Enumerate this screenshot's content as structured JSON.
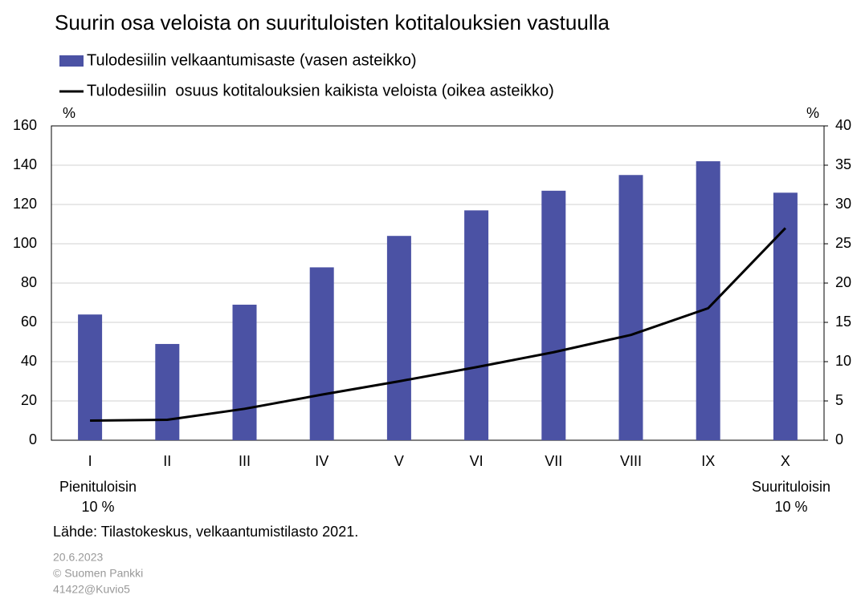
{
  "chart_data": {
    "type": "bar",
    "title": "Suurin osa veloista on suurituloisten kotitalouksien vastuulla",
    "categories": [
      "I",
      "II",
      "III",
      "IV",
      "V",
      "VI",
      "VII",
      "VIII",
      "IX",
      "X"
    ],
    "series": [
      {
        "name": "Tulodesiilin velkaantumisaste (vasen asteikko)",
        "type": "bar",
        "color": "#4b52a4",
        "axis": "y",
        "values": [
          64,
          49,
          69,
          88,
          104,
          117,
          127,
          135,
          142,
          126
        ]
      },
      {
        "name": "Tulodesiilin  osuus kotitalouksien kaikista veloista (oikea asteikko)",
        "type": "line",
        "color": "#000000",
        "axis": "y2",
        "values": [
          2.5,
          2.6,
          4.0,
          5.8,
          7.5,
          9.3,
          11.2,
          13.4,
          16.8,
          27
        ]
      }
    ],
    "ylim": [
      0,
      160
    ],
    "yticks": [
      0,
      20,
      40,
      60,
      80,
      100,
      120,
      140,
      160
    ],
    "y2lim": [
      0,
      40
    ],
    "y2ticks": [
      0,
      5,
      10,
      15,
      20,
      25,
      30,
      35,
      40
    ],
    "yunit": "%",
    "y2unit": "%",
    "grid": true,
    "annotations": [
      [
        "Pienituloisin",
        "10 %"
      ],
      [
        "Suurituloisin",
        "10 %"
      ]
    ],
    "source": "Lähde: Tilastokeskus, velkaantumistilasto 2021.",
    "footer": [
      "20.6.2023",
      "© Suomen Pankki",
      "41422@Kuvio5"
    ]
  }
}
